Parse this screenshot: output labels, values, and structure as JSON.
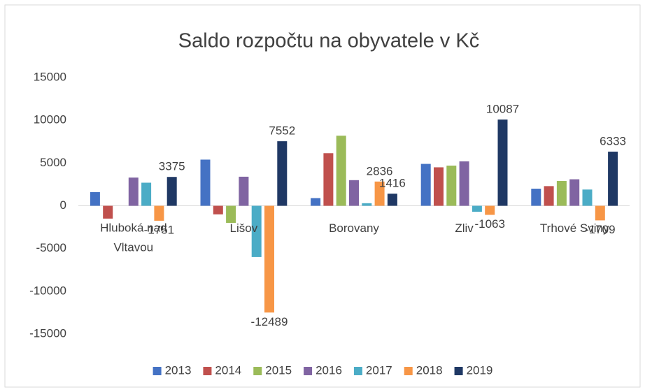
{
  "chart_data": {
    "type": "bar",
    "title": "Saldo rozpočtu na obyvatele v Kč",
    "categories": [
      "Hluboká nad Vltavou",
      "Lišov",
      "Borovany",
      "Zliv",
      "Trhové Sviny"
    ],
    "series": [
      {
        "name": "2013",
        "color": "#4472c4",
        "values": [
          1600,
          5400,
          900,
          4900,
          2000
        ]
      },
      {
        "name": "2014",
        "color": "#c0504d",
        "values": [
          -1500,
          -1000,
          6150,
          4500,
          2300
        ]
      },
      {
        "name": "2015",
        "color": "#9bbb59",
        "values": [
          0,
          -2000,
          8200,
          4700,
          2900
        ]
      },
      {
        "name": "2016",
        "color": "#8064a2",
        "values": [
          3300,
          3400,
          3000,
          5200,
          3100
        ]
      },
      {
        "name": "2017",
        "color": "#4bacc6",
        "values": [
          2700,
          -6000,
          300,
          -700,
          1900
        ]
      },
      {
        "name": "2018",
        "color": "#f79646",
        "values": [
          -1751,
          -12489,
          2836,
          -1063,
          -1709
        ],
        "data_labels": true
      },
      {
        "name": "2019",
        "color": "#1f3864",
        "values": [
          3375,
          7552,
          1416,
          10087,
          6333
        ],
        "data_labels": true
      }
    ],
    "ylim": [
      -15000,
      15000
    ],
    "yticks": [
      -15000,
      -10000,
      -5000,
      0,
      5000,
      10000,
      15000
    ],
    "grid": false,
    "legend": "bottom"
  }
}
